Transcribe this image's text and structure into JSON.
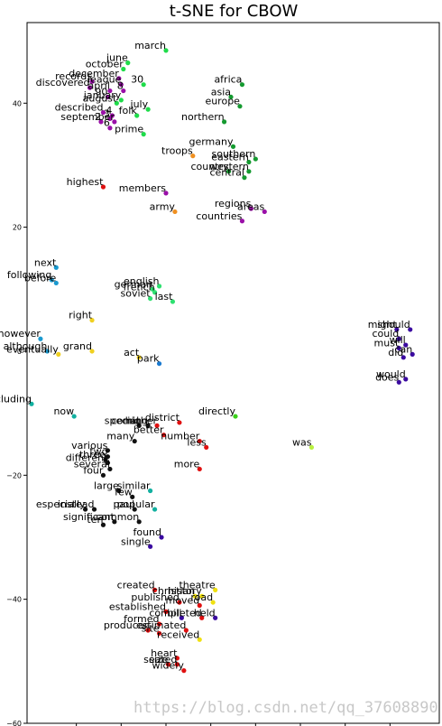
{
  "chart_data": {
    "type": "scatter",
    "title": "t-SNE for CBOW",
    "xlabel": "",
    "ylabel": "",
    "xlim": [
      -36,
      56
    ],
    "ylim": [
      -60,
      53
    ],
    "yticks": [
      40,
      20,
      0,
      -20,
      -40,
      -60
    ],
    "ytick_labels": [
      "40",
      "20",
      "0",
      "−20",
      "−40",
      "−60"
    ],
    "xticks": [
      -25,
      -15,
      -5,
      5,
      15,
      25,
      35,
      45
    ],
    "grid": false,
    "legend": "none",
    "points": [
      {
        "label": "march",
        "x": -5.0,
        "y": 48.5,
        "color": "#1fdc4a"
      },
      {
        "label": "june",
        "x": -13.5,
        "y": 46.5,
        "color": "#1fdc4a"
      },
      {
        "label": "october",
        "x": -14.5,
        "y": 45.5,
        "color": "#1fdc4a"
      },
      {
        "label": "december",
        "x": -15.5,
        "y": 44.0,
        "color": "#9a0fa8"
      },
      {
        "label": "30",
        "x": -10.0,
        "y": 43.0,
        "color": "#1fdc4a"
      },
      {
        "label": "records",
        "x": -21.5,
        "y": 43.5,
        "color": "#9a0fa8"
      },
      {
        "label": "league",
        "x": -15.0,
        "y": 43.0,
        "color": "#9a0fa8"
      },
      {
        "label": "discovered",
        "x": -22.0,
        "y": 42.5,
        "color": "#9a0fa8"
      },
      {
        "label": "april",
        "x": -17.5,
        "y": 42.0,
        "color": "#9a0fa8"
      },
      {
        "label": "8",
        "x": -14.5,
        "y": 42.0,
        "color": "#9a0fa8"
      },
      {
        "label": "90",
        "x": -18.0,
        "y": 41.0,
        "color": "#9a0fa8"
      },
      {
        "label": "january",
        "x": -15.0,
        "y": 40.5,
        "color": "#1fdc4a"
      },
      {
        "label": "august",
        "x": -16.0,
        "y": 40.0,
        "color": "#1fdc4a"
      },
      {
        "label": "africa",
        "x": 12.0,
        "y": 43.0,
        "color": "#159a30"
      },
      {
        "label": "july",
        "x": -9.0,
        "y": 39.0,
        "color": "#1fdc4a"
      },
      {
        "label": "asia",
        "x": 9.5,
        "y": 41.0,
        "color": "#159a30"
      },
      {
        "label": "europe",
        "x": 11.5,
        "y": 39.5,
        "color": "#159a30"
      },
      {
        "label": "described",
        "x": -19.0,
        "y": 38.5,
        "color": "#9a0fa8"
      },
      {
        "label": "4",
        "x": -17.0,
        "y": 38.0,
        "color": "#9a0fa8"
      },
      {
        "label": "3",
        "x": -17.5,
        "y": 37.5,
        "color": "#9a0fa8"
      },
      {
        "label": "september",
        "x": -16.5,
        "y": 37.0,
        "color": "#9a0fa8"
      },
      {
        "label": "2",
        "x": -19.5,
        "y": 37.0,
        "color": "#9a0fa8"
      },
      {
        "label": "folk",
        "x": -11.5,
        "y": 38.0,
        "color": "#1fdc4a"
      },
      {
        "label": "northern",
        "x": 8.0,
        "y": 37.0,
        "color": "#159a30"
      },
      {
        "label": "6",
        "x": -17.5,
        "y": 36.0,
        "color": "#9a0fa8"
      },
      {
        "label": "prime",
        "x": -10.0,
        "y": 35.0,
        "color": "#1fdc4a"
      },
      {
        "label": "germany",
        "x": 10.0,
        "y": 33.0,
        "color": "#159a30"
      },
      {
        "label": "troops",
        "x": 1.0,
        "y": 31.5,
        "color": "#f09020"
      },
      {
        "label": "southern",
        "x": 15.0,
        "y": 31.0,
        "color": "#159a30"
      },
      {
        "label": "eastern",
        "x": 13.5,
        "y": 30.5,
        "color": "#159a30"
      },
      {
        "label": "country",
        "x": 9.0,
        "y": 29.0,
        "color": "#159a30"
      },
      {
        "label": "western",
        "x": 13.5,
        "y": 29.0,
        "color": "#159a30"
      },
      {
        "label": "central",
        "x": 12.5,
        "y": 28.0,
        "color": "#159a30"
      },
      {
        "label": "highest",
        "x": -19.0,
        "y": 26.5,
        "color": "#e01010"
      },
      {
        "label": "members",
        "x": -5.0,
        "y": 25.5,
        "color": "#9a0fa8"
      },
      {
        "label": "regions",
        "x": 14.0,
        "y": 23.0,
        "color": "#9a0fa8"
      },
      {
        "label": "areas",
        "x": 17.0,
        "y": 22.5,
        "color": "#9a0fa8"
      },
      {
        "label": "army",
        "x": -3.0,
        "y": 22.5,
        "color": "#f09020"
      },
      {
        "label": "countries",
        "x": 12.0,
        "y": 21.0,
        "color": "#9a0fa8"
      },
      {
        "label": "next",
        "x": -29.5,
        "y": 13.5,
        "color": "#1a9ad0"
      },
      {
        "label": "following",
        "x": -30.5,
        "y": 11.5,
        "color": "#1a9ad0"
      },
      {
        "label": "before",
        "x": -29.5,
        "y": 11.0,
        "color": "#1a9ad0"
      },
      {
        "label": "english",
        "x": -6.5,
        "y": 10.5,
        "color": "#2ee070"
      },
      {
        "label": "german",
        "x": -8.0,
        "y": 10.0,
        "color": "#2ee070"
      },
      {
        "label": "french",
        "x": -7.5,
        "y": 9.5,
        "color": "#2ee070"
      },
      {
        "label": "soviet",
        "x": -8.5,
        "y": 8.5,
        "color": "#2ee070"
      },
      {
        "label": "last",
        "x": -3.5,
        "y": 8.0,
        "color": "#2ee070"
      },
      {
        "label": "right",
        "x": -21.5,
        "y": 5.0,
        "color": "#f0d020"
      },
      {
        "label": "however",
        "x": -33.0,
        "y": 2.0,
        "color": "#1a9ad0"
      },
      {
        "label": "might",
        "x": 46.5,
        "y": 3.5,
        "color": "#3a0aa0"
      },
      {
        "label": "should",
        "x": 49.5,
        "y": 3.5,
        "color": "#3a0aa0"
      },
      {
        "label": "could",
        "x": 47.0,
        "y": 2.0,
        "color": "#3a0aa0"
      },
      {
        "label": "will",
        "x": 48.5,
        "y": 1.0,
        "color": "#3a0aa0"
      },
      {
        "label": "must",
        "x": 47.0,
        "y": 0.5,
        "color": "#3a0aa0"
      },
      {
        "label": "can",
        "x": 50.0,
        "y": -0.5,
        "color": "#3a0aa0"
      },
      {
        "label": "did",
        "x": 48.0,
        "y": -1.0,
        "color": "#3a0aa0"
      },
      {
        "label": "although",
        "x": -31.5,
        "y": 0.0,
        "color": "#1a9ad0"
      },
      {
        "label": "eventually",
        "x": -29.0,
        "y": -0.5,
        "color": "#f0d020"
      },
      {
        "label": "grand",
        "x": -21.5,
        "y": 0.0,
        "color": "#f0d020"
      },
      {
        "label": "act",
        "x": -11.0,
        "y": -1.0,
        "color": "#f0d020"
      },
      {
        "label": "park",
        "x": -6.5,
        "y": -2.0,
        "color": "#1a7ad0"
      },
      {
        "label": "would",
        "x": 48.5,
        "y": -4.5,
        "color": "#3a0aa0"
      },
      {
        "label": "does",
        "x": 47.0,
        "y": -5.0,
        "color": "#3a0aa0"
      },
      {
        "label": "including",
        "x": -35.0,
        "y": -8.5,
        "color": "#12b0a0"
      },
      {
        "label": "now",
        "x": -25.5,
        "y": -10.5,
        "color": "#12b0a0"
      },
      {
        "label": "directly",
        "x": 10.5,
        "y": -10.5,
        "color": "#3ad01a"
      },
      {
        "label": "district",
        "x": -2.0,
        "y": -11.5,
        "color": "#e01010"
      },
      {
        "label": "higher",
        "x": -7.0,
        "y": -12.0,
        "color": "#e01010"
      },
      {
        "label": "special",
        "x": -11.0,
        "y": -12.0,
        "color": "#111111"
      },
      {
        "label": "coming",
        "x": -9.0,
        "y": -12.0,
        "color": "#111111"
      },
      {
        "label": "better",
        "x": -5.5,
        "y": -13.5,
        "color": "#e01010"
      },
      {
        "label": "many",
        "x": -12.0,
        "y": -14.5,
        "color": "#111111"
      },
      {
        "label": "number",
        "x": 2.5,
        "y": -14.5,
        "color": "#e01010"
      },
      {
        "label": "less",
        "x": 4.0,
        "y": -15.5,
        "color": "#e01010"
      },
      {
        "label": "was",
        "x": 27.5,
        "y": -15.5,
        "color": "#b8f040"
      },
      {
        "label": "various",
        "x": -18.0,
        "y": -16.0,
        "color": "#111111"
      },
      {
        "label": "two",
        "x": -18.0,
        "y": -17.0,
        "color": "#111111"
      },
      {
        "label": "three",
        "x": -18.5,
        "y": -17.5,
        "color": "#111111"
      },
      {
        "label": "different",
        "x": -18.0,
        "y": -18.0,
        "color": "#111111"
      },
      {
        "label": "several",
        "x": -17.5,
        "y": -19.0,
        "color": "#111111"
      },
      {
        "label": "more",
        "x": 2.5,
        "y": -19.0,
        "color": "#e01010"
      },
      {
        "label": "four",
        "x": -19.0,
        "y": -20.0,
        "color": "#111111"
      },
      {
        "label": "similar",
        "x": -8.5,
        "y": -22.5,
        "color": "#12b0a0"
      },
      {
        "label": "large",
        "x": -15.5,
        "y": -22.5,
        "color": "#111111"
      },
      {
        "label": "few",
        "x": -12.5,
        "y": -23.5,
        "color": "#111111"
      },
      {
        "label": "especially",
        "x": -23.0,
        "y": -25.5,
        "color": "#111111"
      },
      {
        "label": "instead",
        "x": -21.0,
        "y": -25.5,
        "color": "#111111"
      },
      {
        "label": "paul",
        "x": -12.0,
        "y": -25.5,
        "color": "#111111"
      },
      {
        "label": "popular",
        "x": -7.5,
        "y": -25.5,
        "color": "#12b0a0"
      },
      {
        "label": "significant",
        "x": -16.5,
        "y": -27.5,
        "color": "#111111"
      },
      {
        "label": "common",
        "x": -11.0,
        "y": -27.5,
        "color": "#111111"
      },
      {
        "label": "ten",
        "x": -19.0,
        "y": -28.0,
        "color": "#111111"
      },
      {
        "label": "found",
        "x": -6.0,
        "y": -30.0,
        "color": "#3a0aa0"
      },
      {
        "label": "single",
        "x": -8.5,
        "y": -31.5,
        "color": "#3a0aa0"
      },
      {
        "label": "created",
        "x": -7.5,
        "y": -38.5,
        "color": "#e01010"
      },
      {
        "label": "theatre",
        "x": 6.0,
        "y": -38.5,
        "color": "#f0e010"
      },
      {
        "label": "christian",
        "x": 1.5,
        "y": -39.5,
        "color": "#f0e010"
      },
      {
        "label": "history",
        "x": 3.0,
        "y": -39.5,
        "color": "#f0e010"
      },
      {
        "label": "published",
        "x": -2.0,
        "y": -40.5,
        "color": "#e01010"
      },
      {
        "label": "road",
        "x": 5.5,
        "y": -40.5,
        "color": "#f0e010"
      },
      {
        "label": "moved",
        "x": 2.5,
        "y": -41.0,
        "color": "#e01010"
      },
      {
        "label": "established",
        "x": -5.0,
        "y": -42.0,
        "color": "#e01010"
      },
      {
        "label": "bill",
        "x": -1.5,
        "y": -43.0,
        "color": "#3a0aa0"
      },
      {
        "label": "completed",
        "x": 3.0,
        "y": -43.0,
        "color": "#e01010"
      },
      {
        "label": "held",
        "x": 6.0,
        "y": -43.0,
        "color": "#3a0aa0"
      },
      {
        "label": "formed",
        "x": -6.5,
        "y": -44.0,
        "color": "#e01010"
      },
      {
        "label": "producer",
        "x": -9.0,
        "y": -45.0,
        "color": "#e01010"
      },
      {
        "label": "estimated",
        "x": -0.5,
        "y": -45.0,
        "color": "#e01010"
      },
      {
        "label": "site",
        "x": -6.5,
        "y": -45.5,
        "color": "#e01010"
      },
      {
        "label": "received",
        "x": 2.5,
        "y": -46.5,
        "color": "#f0e010"
      },
      {
        "label": "heart",
        "x": -2.5,
        "y": -49.5,
        "color": "#e01010"
      },
      {
        "label": "size",
        "x": -4.5,
        "y": -50.5,
        "color": "#e01010"
      },
      {
        "label": "seated",
        "x": -2.5,
        "y": -50.5,
        "color": "#e01010"
      },
      {
        "label": "widely",
        "x": -1.0,
        "y": -51.5,
        "color": "#e01010"
      }
    ]
  },
  "watermark": "https://blog.csdn.net/qq_37608890"
}
